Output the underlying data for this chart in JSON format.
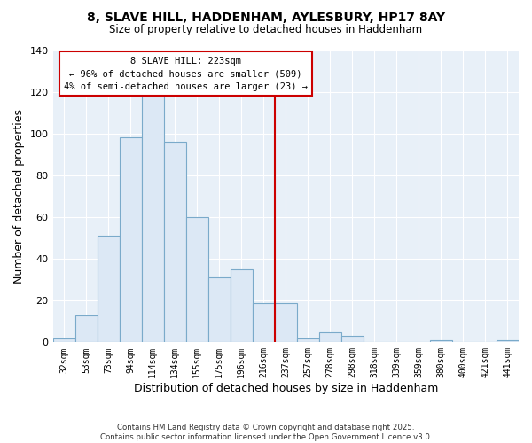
{
  "title": "8, SLAVE HILL, HADDENHAM, AYLESBURY, HP17 8AY",
  "subtitle": "Size of property relative to detached houses in Haddenham",
  "xlabel": "Distribution of detached houses by size in Haddenham",
  "ylabel": "Number of detached properties",
  "bar_color": "#dce8f5",
  "bar_edge_color": "#7aaaca",
  "categories": [
    "32sqm",
    "53sqm",
    "73sqm",
    "94sqm",
    "114sqm",
    "134sqm",
    "155sqm",
    "175sqm",
    "196sqm",
    "216sqm",
    "237sqm",
    "257sqm",
    "278sqm",
    "298sqm",
    "318sqm",
    "339sqm",
    "359sqm",
    "380sqm",
    "400sqm",
    "421sqm",
    "441sqm"
  ],
  "values": [
    2,
    13,
    51,
    98,
    118,
    96,
    60,
    31,
    35,
    19,
    19,
    2,
    5,
    3,
    0,
    0,
    0,
    1,
    0,
    0,
    1
  ],
  "ylim": [
    0,
    140
  ],
  "yticks": [
    0,
    20,
    40,
    60,
    80,
    100,
    120,
    140
  ],
  "vline_x": 9.5,
  "vline_color": "#cc0000",
  "annotation_title": "8 SLAVE HILL: 223sqm",
  "annotation_line1": "← 96% of detached houses are smaller (509)",
  "annotation_line2": "4% of semi-detached houses are larger (23) →",
  "annotation_box_facecolor": "#ffffff",
  "annotation_box_edgecolor": "#cc0000",
  "footer1": "Contains HM Land Registry data © Crown copyright and database right 2025.",
  "footer2": "Contains public sector information licensed under the Open Government Licence v3.0.",
  "bg_color": "#ffffff",
  "plot_bg_color": "#e8f0f8",
  "grid_color": "#ffffff"
}
